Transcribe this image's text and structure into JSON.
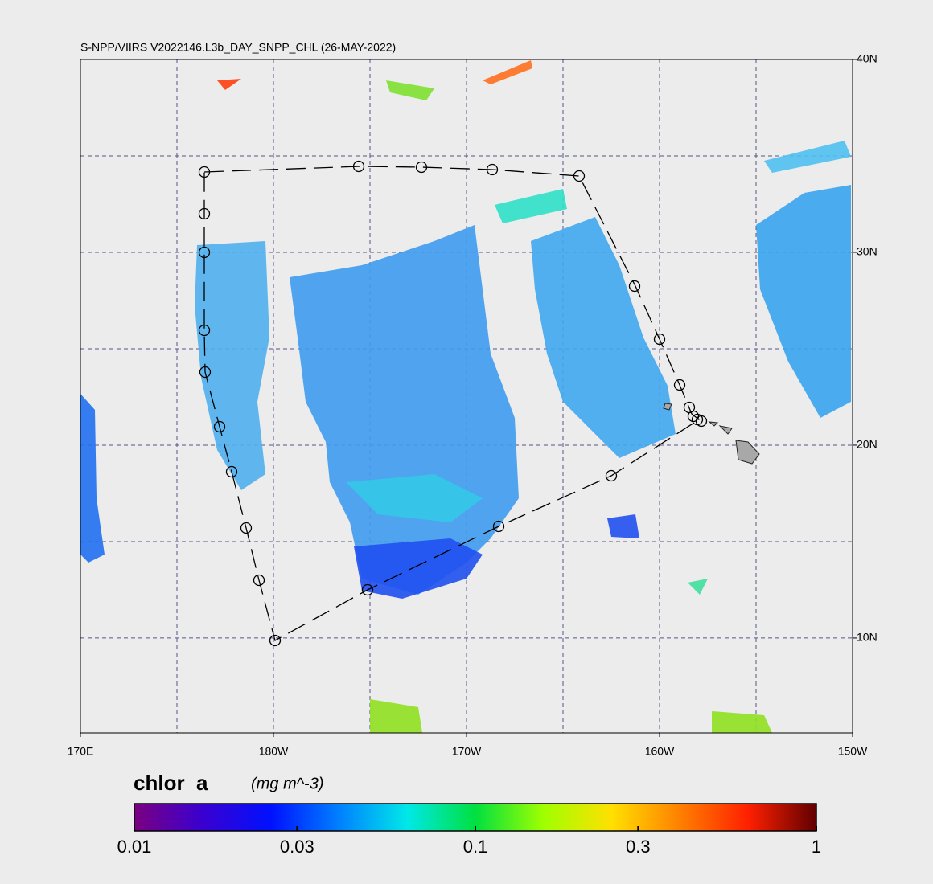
{
  "map": {
    "title": "S-NPP/VIIRS V2022146.L3b_DAY_SNPP_CHL (26-MAY-2022)",
    "xlim": [
      170,
      210
    ],
    "ylim": [
      5.08,
      40
    ],
    "xticks": [
      {
        "value": 170,
        "label": "170E"
      },
      {
        "value": 180,
        "label": "180W"
      },
      {
        "value": 190,
        "label": "170W"
      },
      {
        "value": 200,
        "label": "160W"
      },
      {
        "value": 210,
        "label": "150W"
      }
    ],
    "yticks": [
      {
        "value": 10,
        "label": "10N"
      },
      {
        "value": 20,
        "label": "20N"
      },
      {
        "value": 30,
        "label": "30N"
      },
      {
        "value": 40,
        "label": "40N"
      }
    ],
    "grid_step": 5,
    "colorbar": {
      "label": "chlor_a",
      "units": "(mg m^-3)",
      "log_scale": true,
      "lim": [
        0.01,
        1
      ],
      "ticks": [
        0.01,
        0.03,
        0.1,
        0.3,
        1
      ],
      "colors": [
        "#7a0080",
        "#3a00d0",
        "#0010ff",
        "#0080ff",
        "#00e8e8",
        "#00e040",
        "#a0ff00",
        "#ffe000",
        "#ff8000",
        "#ff2000",
        "#600000"
      ]
    }
  }
}
